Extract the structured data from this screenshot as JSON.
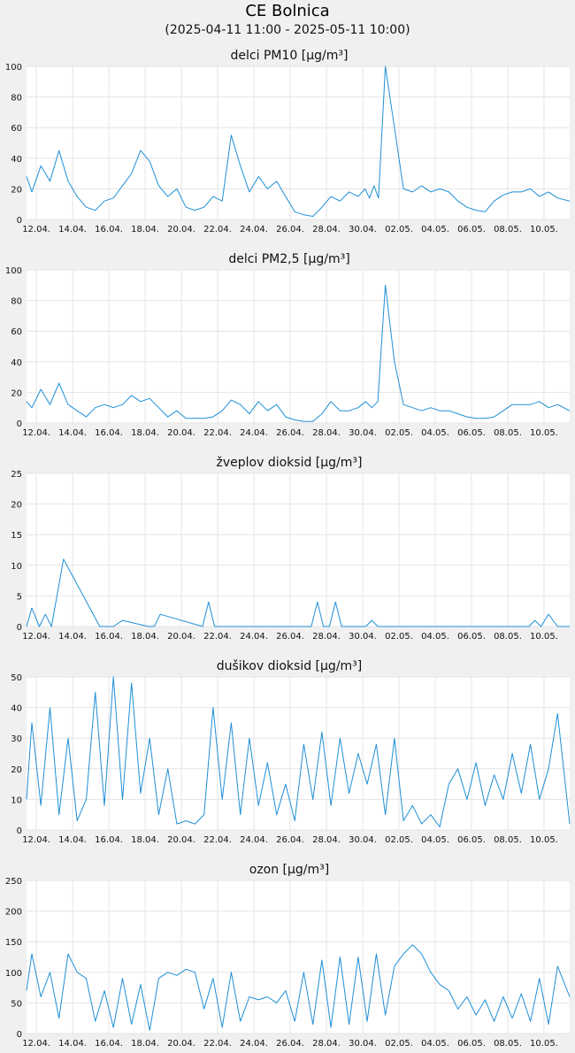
{
  "station": "CE Bolnica",
  "range": "(2025-04-11 11:00 - 2025-05-11 10:00)",
  "colors": {
    "line": "#1f8fd6",
    "grid": "#e4e4e4",
    "plot_bg": "#ffffff",
    "page_bg": "#f0f0f0"
  },
  "x_ticks": [
    "12.04.",
    "14.04.",
    "16.04.",
    "18.04.",
    "20.04.",
    "22.04.",
    "24.04.",
    "26.04.",
    "28.04.",
    "30.04.",
    "02.05.",
    "04.05.",
    "06.05.",
    "08.05.",
    "10.05."
  ],
  "chart_data": [
    {
      "type": "line",
      "title": "delci PM10 [µg/m³]",
      "ylim": [
        0,
        100
      ],
      "y_ticks": [
        0,
        20,
        40,
        60,
        80,
        100
      ],
      "x": [
        "2025-04-11",
        "2025-04-11",
        "2025-04-12",
        "2025-04-12",
        "2025-04-13",
        "2025-04-13",
        "2025-04-14",
        "2025-04-14",
        "2025-04-15",
        "2025-04-15",
        "2025-04-16",
        "2025-04-16",
        "2025-04-17",
        "2025-04-17",
        "2025-04-18",
        "2025-04-18",
        "2025-04-19",
        "2025-04-19",
        "2025-04-20",
        "2025-04-20",
        "2025-04-21",
        "2025-04-21",
        "2025-04-22",
        "2025-04-22",
        "2025-04-23",
        "2025-04-23",
        "2025-04-24",
        "2025-04-24",
        "2025-04-25",
        "2025-04-25",
        "2025-04-26",
        "2025-04-26",
        "2025-04-27",
        "2025-04-27",
        "2025-04-28",
        "2025-04-28",
        "2025-04-29",
        "2025-04-29",
        "2025-04-30",
        "2025-04-30",
        "2025-04-30",
        "2025-04-30",
        "2025-05-01",
        "2025-05-01",
        "2025-05-02",
        "2025-05-02",
        "2025-05-03",
        "2025-05-03",
        "2025-05-04",
        "2025-05-04",
        "2025-05-05",
        "2025-05-05",
        "2025-05-06",
        "2025-05-06",
        "2025-05-07",
        "2025-05-07",
        "2025-05-08",
        "2025-05-08",
        "2025-05-09",
        "2025-05-09",
        "2025-05-10",
        "2025-05-10",
        "2025-05-11"
      ],
      "y": [
        28,
        18,
        35,
        25,
        45,
        25,
        15,
        8,
        6,
        12,
        14,
        22,
        30,
        45,
        38,
        22,
        15,
        20,
        8,
        6,
        8,
        15,
        12,
        55,
        35,
        18,
        28,
        20,
        25,
        15,
        5,
        3,
        2,
        8,
        15,
        12,
        18,
        15,
        20,
        14,
        22,
        14,
        100,
        60,
        20,
        18,
        22,
        18,
        20,
        18,
        12,
        8,
        6,
        5,
        12,
        16,
        18,
        18,
        20,
        15,
        18,
        14,
        12
      ]
    },
    {
      "type": "line",
      "title": "delci PM2,5 [µg/m³]",
      "ylim": [
        0,
        100
      ],
      "y_ticks": [
        0,
        20,
        40,
        60,
        80,
        100
      ],
      "x": [
        "2025-04-11",
        "2025-04-11",
        "2025-04-12",
        "2025-04-12",
        "2025-04-13",
        "2025-04-13",
        "2025-04-14",
        "2025-04-14",
        "2025-04-15",
        "2025-04-15",
        "2025-04-16",
        "2025-04-16",
        "2025-04-17",
        "2025-04-17",
        "2025-04-18",
        "2025-04-18",
        "2025-04-19",
        "2025-04-19",
        "2025-04-20",
        "2025-04-20",
        "2025-04-21",
        "2025-04-21",
        "2025-04-22",
        "2025-04-22",
        "2025-04-23",
        "2025-04-23",
        "2025-04-24",
        "2025-04-24",
        "2025-04-25",
        "2025-04-25",
        "2025-04-26",
        "2025-04-26",
        "2025-04-27",
        "2025-04-27",
        "2025-04-28",
        "2025-04-28",
        "2025-04-29",
        "2025-04-29",
        "2025-04-30",
        "2025-04-30",
        "2025-04-30",
        "2025-05-01",
        "2025-05-01",
        "2025-05-02",
        "2025-05-02",
        "2025-05-03",
        "2025-05-03",
        "2025-05-04",
        "2025-05-04",
        "2025-05-05",
        "2025-05-05",
        "2025-05-06",
        "2025-05-06",
        "2025-05-07",
        "2025-05-07",
        "2025-05-08",
        "2025-05-08",
        "2025-05-09",
        "2025-05-09",
        "2025-05-10",
        "2025-05-10",
        "2025-05-11"
      ],
      "y": [
        14,
        10,
        22,
        12,
        26,
        12,
        8,
        4,
        10,
        12,
        10,
        12,
        18,
        14,
        16,
        10,
        4,
        8,
        3,
        3,
        3,
        4,
        8,
        15,
        12,
        6,
        14,
        8,
        12,
        4,
        2,
        1,
        1,
        6,
        14,
        8,
        8,
        10,
        14,
        10,
        14,
        90,
        40,
        12,
        10,
        8,
        10,
        8,
        8,
        6,
        4,
        3,
        3,
        4,
        8,
        12,
        12,
        12,
        14,
        10,
        12,
        8
      ]
    },
    {
      "type": "line",
      "title": "žveplov dioksid [µg/m³]",
      "ylim": [
        0,
        25
      ],
      "y_ticks": [
        0,
        5,
        10,
        15,
        20,
        25
      ],
      "x": [
        "2025-04-11",
        "2025-04-11",
        "2025-04-12",
        "2025-04-12",
        "2025-04-12",
        "2025-04-13",
        "2025-04-15",
        "2025-04-16",
        "2025-04-16",
        "2025-04-18",
        "2025-04-18",
        "2025-04-18",
        "2025-04-21",
        "2025-04-21",
        "2025-04-21",
        "2025-04-24",
        "2025-04-27",
        "2025-04-27",
        "2025-04-27",
        "2025-04-28",
        "2025-04-28",
        "2025-04-28",
        "2025-04-29",
        "2025-04-30",
        "2025-04-30",
        "2025-04-30",
        "2025-05-02",
        "2025-05-05",
        "2025-05-09",
        "2025-05-09",
        "2025-05-09",
        "2025-05-10",
        "2025-05-10",
        "2025-05-11"
      ],
      "y": [
        0,
        3,
        0,
        2,
        0,
        11,
        0,
        0,
        1,
        0,
        0,
        2,
        0,
        4,
        0,
        0,
        0,
        4,
        0,
        0,
        4,
        0,
        0,
        0,
        1,
        0,
        0,
        0,
        0,
        1,
        0,
        2,
        0,
        0
      ]
    },
    {
      "type": "line",
      "title": "dušikov dioksid [µg/m³]",
      "ylim": [
        0,
        50
      ],
      "y_ticks": [
        0,
        10,
        20,
        30,
        40,
        50
      ],
      "x": [
        "2025-04-11",
        "2025-04-11",
        "2025-04-12",
        "2025-04-12",
        "2025-04-13",
        "2025-04-13",
        "2025-04-14",
        "2025-04-14",
        "2025-04-15",
        "2025-04-15",
        "2025-04-16",
        "2025-04-16",
        "2025-04-17",
        "2025-04-17",
        "2025-04-18",
        "2025-04-18",
        "2025-04-19",
        "2025-04-19",
        "2025-04-20",
        "2025-04-20",
        "2025-04-21",
        "2025-04-21",
        "2025-04-22",
        "2025-04-22",
        "2025-04-23",
        "2025-04-23",
        "2025-04-24",
        "2025-04-24",
        "2025-04-25",
        "2025-04-25",
        "2025-04-26",
        "2025-04-26",
        "2025-04-27",
        "2025-04-27",
        "2025-04-28",
        "2025-04-28",
        "2025-04-29",
        "2025-04-29",
        "2025-04-30",
        "2025-04-30",
        "2025-05-01",
        "2025-05-01",
        "2025-05-02",
        "2025-05-02",
        "2025-05-03",
        "2025-05-03",
        "2025-05-04",
        "2025-05-04",
        "2025-05-05",
        "2025-05-05",
        "2025-05-06",
        "2025-05-06",
        "2025-05-07",
        "2025-05-07",
        "2025-05-08",
        "2025-05-08",
        "2025-05-09",
        "2025-05-09",
        "2025-05-10",
        "2025-05-10",
        "2025-05-11"
      ],
      "y": [
        10,
        35,
        8,
        40,
        5,
        30,
        3,
        10,
        45,
        8,
        50,
        10,
        48,
        12,
        30,
        5,
        20,
        2,
        3,
        2,
        5,
        40,
        10,
        35,
        5,
        30,
        8,
        22,
        5,
        15,
        3,
        28,
        10,
        32,
        8,
        30,
        12,
        25,
        15,
        28,
        5,
        30,
        3,
        8,
        2,
        5,
        1,
        15,
        20,
        10,
        22,
        8,
        18,
        10,
        25,
        12,
        28,
        10,
        20,
        38,
        2
      ]
    },
    {
      "type": "line",
      "title": "ozon [µg/m³]",
      "ylim": [
        0,
        250
      ],
      "y_ticks": [
        0,
        50,
        100,
        150,
        200,
        250
      ],
      "x": [
        "2025-04-11",
        "2025-04-11",
        "2025-04-12",
        "2025-04-12",
        "2025-04-13",
        "2025-04-13",
        "2025-04-14",
        "2025-04-14",
        "2025-04-15",
        "2025-04-15",
        "2025-04-16",
        "2025-04-16",
        "2025-04-17",
        "2025-04-17",
        "2025-04-18",
        "2025-04-18",
        "2025-04-19",
        "2025-04-19",
        "2025-04-20",
        "2025-04-20",
        "2025-04-21",
        "2025-04-21",
        "2025-04-22",
        "2025-04-22",
        "2025-04-23",
        "2025-04-23",
        "2025-04-24",
        "2025-04-24",
        "2025-04-25",
        "2025-04-25",
        "2025-04-26",
        "2025-04-26",
        "2025-04-27",
        "2025-04-27",
        "2025-04-28",
        "2025-04-28",
        "2025-04-29",
        "2025-04-29",
        "2025-04-30",
        "2025-04-30",
        "2025-05-01",
        "2025-05-01",
        "2025-05-02",
        "2025-05-02",
        "2025-05-03",
        "2025-05-03",
        "2025-05-04",
        "2025-05-04",
        "2025-05-05",
        "2025-05-05",
        "2025-05-06",
        "2025-05-06",
        "2025-05-07",
        "2025-05-07",
        "2025-05-08",
        "2025-05-08",
        "2025-05-09",
        "2025-05-09",
        "2025-05-10",
        "2025-05-10",
        "2025-05-11"
      ],
      "y": [
        70,
        130,
        60,
        100,
        25,
        130,
        100,
        90,
        20,
        70,
        10,
        90,
        15,
        80,
        5,
        90,
        100,
        95,
        105,
        100,
        40,
        90,
        10,
        100,
        20,
        60,
        55,
        60,
        50,
        70,
        20,
        100,
        15,
        120,
        10,
        125,
        15,
        125,
        20,
        130,
        30,
        110,
        130,
        145,
        130,
        100,
        80,
        70,
        40,
        60,
        30,
        55,
        20,
        60,
        25,
        65,
        20,
        90,
        15,
        110,
        60
      ]
    }
  ]
}
